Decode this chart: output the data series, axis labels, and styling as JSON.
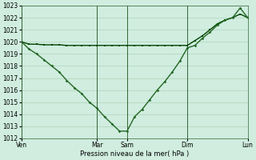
{
  "xlabel": "Pression niveau de la mer( hPa )",
  "ylim": [
    1012,
    1023
  ],
  "yticks": [
    1012,
    1013,
    1014,
    1015,
    1016,
    1017,
    1018,
    1019,
    1020,
    1021,
    1022,
    1023
  ],
  "bg_color": "#d0ede0",
  "grid_color": "#aaccaa",
  "line1_color": "#004400",
  "line2_color": "#226622",
  "day_labels": [
    "Ven",
    "Mar",
    "Sam",
    "Dim",
    "Lun"
  ],
  "day_positions": [
    0,
    10,
    14,
    22,
    30
  ],
  "xlim": [
    0,
    30
  ],
  "line1_x": [
    0,
    1,
    2,
    3,
    4,
    5,
    6,
    7,
    8,
    9,
    10,
    11,
    12,
    13,
    14,
    15,
    16,
    17,
    18,
    19,
    20,
    21,
    22,
    23,
    24,
    25,
    26,
    27,
    28,
    29,
    30
  ],
  "line1_y": [
    1020.0,
    1019.8,
    1019.8,
    1019.75,
    1019.75,
    1019.75,
    1019.7,
    1019.7,
    1019.7,
    1019.7,
    1019.7,
    1019.7,
    1019.7,
    1019.7,
    1019.7,
    1019.7,
    1019.7,
    1019.7,
    1019.7,
    1019.7,
    1019.7,
    1019.7,
    1019.7,
    1020.1,
    1020.5,
    1021.0,
    1021.5,
    1021.8,
    1022.0,
    1022.3,
    1022.0
  ],
  "line2_x": [
    0,
    1,
    2,
    3,
    4,
    5,
    6,
    7,
    8,
    9,
    10,
    11,
    12,
    13,
    14,
    15,
    16,
    17,
    18,
    19,
    20,
    21,
    22,
    23,
    24,
    25,
    26,
    27,
    28,
    29,
    30
  ],
  "line2_y": [
    1020.0,
    1019.4,
    1019.0,
    1018.5,
    1018.0,
    1017.5,
    1016.8,
    1016.2,
    1015.7,
    1015.0,
    1014.5,
    1013.8,
    1013.2,
    1012.6,
    1012.6,
    1013.8,
    1014.4,
    1015.2,
    1016.0,
    1016.7,
    1017.5,
    1018.4,
    1019.5,
    1019.7,
    1020.3,
    1020.8,
    1021.4,
    1021.8,
    1022.0,
    1022.8,
    1022.0
  ]
}
